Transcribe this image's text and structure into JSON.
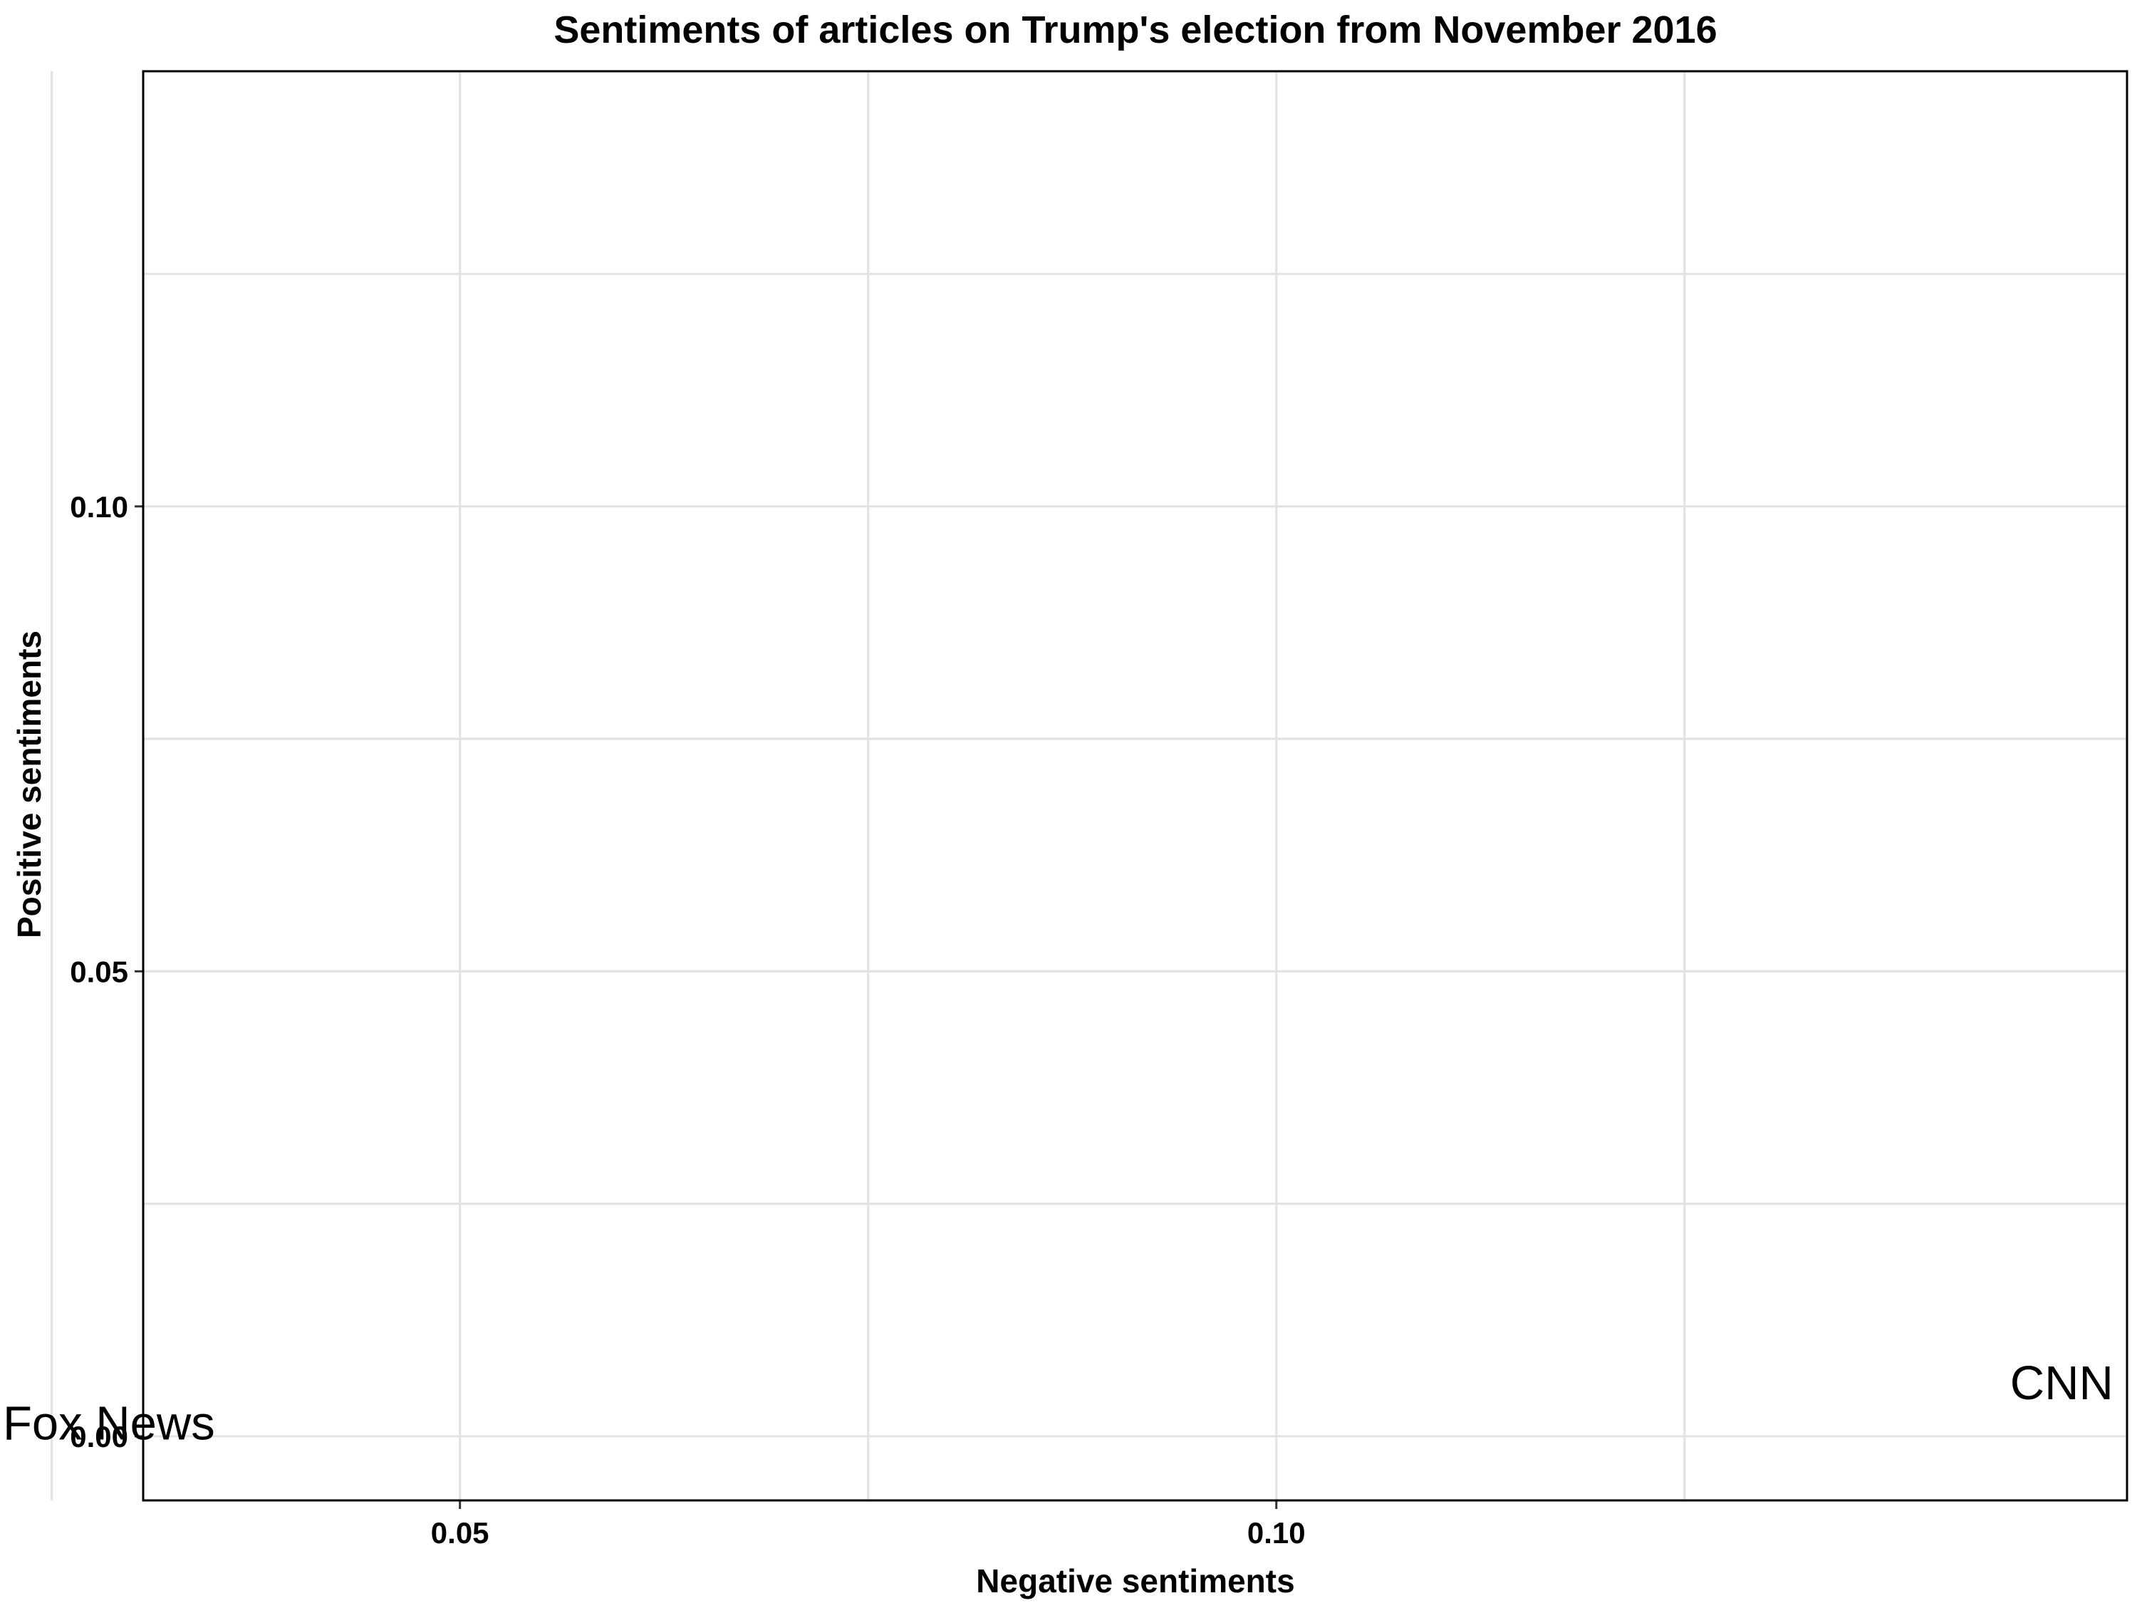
{
  "chart_data": {
    "type": "scatter",
    "title": "Sentiments of articles on Trump's election from November 2016",
    "xlabel": "Negative sentiments",
    "ylabel": "Positive sentiments",
    "xlim": [
      0.0306,
      0.1521
    ],
    "ylim": [
      -0.0069,
      0.1468
    ],
    "x_ticks": [
      0.05,
      0.1
    ],
    "x_tick_labels": [
      "0.05",
      "0.10"
    ],
    "x_minor": [
      0.025,
      0.075,
      0.125
    ],
    "y_ticks": [
      0.0,
      0.05,
      0.1
    ],
    "y_tick_labels": [
      "0.00",
      "0.05",
      "0.10"
    ],
    "y_minor": [
      0.025,
      0.075,
      0.125
    ],
    "grid": true,
    "legend": "none",
    "points": [
      {
        "label": "Fox News",
        "x": 0.0285,
        "y": 0.0015
      },
      {
        "label": "CNN",
        "x": 0.1481,
        "y": 0.0058
      }
    ]
  }
}
